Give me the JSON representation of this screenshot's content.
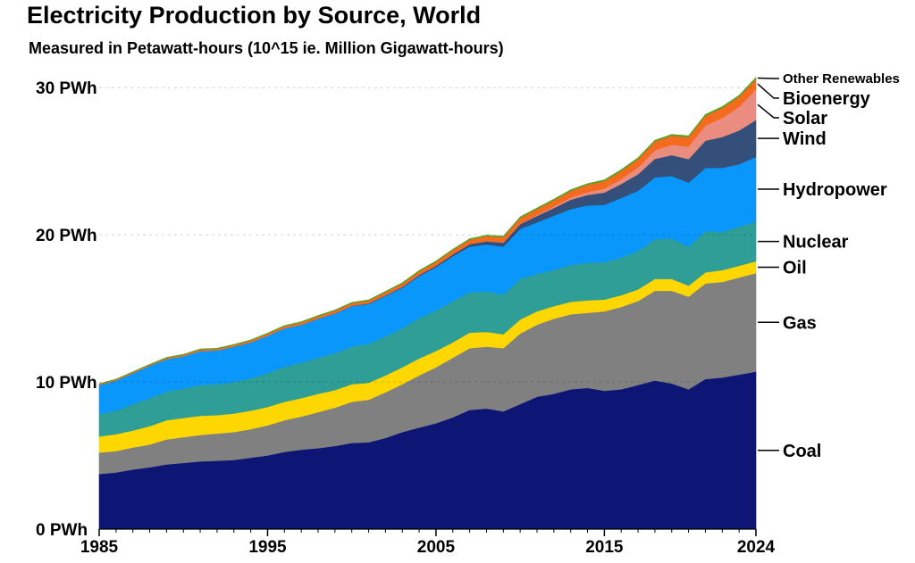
{
  "title": "Electricity Production by Source, World",
  "subtitle": "Measured in Petawatt-hours (10^15 ie. Million Gigawatt-hours)",
  "chart_data": {
    "type": "area",
    "stacked": true,
    "title": "Electricity Production by Source, World",
    "subtitle": "Measured in Petawatt-hours (10^15 ie. Million Gigawatt-hours)",
    "xlabel": "",
    "ylabel": "",
    "ylim": [
      0,
      30
    ],
    "xlim": [
      1985,
      2024
    ],
    "y_ticks": [
      {
        "value": 0,
        "label": "0 PWh"
      },
      {
        "value": 10,
        "label": "10 PWh"
      },
      {
        "value": 20,
        "label": "20 PWh"
      },
      {
        "value": 30,
        "label": "30 PWh"
      }
    ],
    "x_ticks": [
      {
        "value": 1985,
        "label": "1985"
      },
      {
        "value": 1995,
        "label": "1995"
      },
      {
        "value": 2005,
        "label": "2005"
      },
      {
        "value": 2015,
        "label": "2015"
      },
      {
        "value": 2024,
        "label": "2024"
      }
    ],
    "legend_position": "right, inline labels at series end",
    "x": [
      1985,
      1986,
      1987,
      1988,
      1989,
      1990,
      1991,
      1992,
      1993,
      1994,
      1995,
      1996,
      1997,
      1998,
      1999,
      2000,
      2001,
      2002,
      2003,
      2004,
      2005,
      2006,
      2007,
      2008,
      2009,
      2010,
      2011,
      2012,
      2013,
      2014,
      2015,
      2016,
      2017,
      2018,
      2019,
      2020,
      2021,
      2022,
      2023,
      2024
    ],
    "series": [
      {
        "name": "Coal",
        "color": "#0d1575",
        "values": [
          3.75,
          3.85,
          4.05,
          4.2,
          4.4,
          4.5,
          4.6,
          4.65,
          4.7,
          4.85,
          5.0,
          5.25,
          5.4,
          5.5,
          5.65,
          5.85,
          5.9,
          6.2,
          6.6,
          6.9,
          7.2,
          7.6,
          8.1,
          8.2,
          8.0,
          8.5,
          9.0,
          9.2,
          9.5,
          9.6,
          9.4,
          9.5,
          9.8,
          10.1,
          9.9,
          9.5,
          10.2,
          10.3,
          10.5,
          10.7
        ]
      },
      {
        "name": "Gas",
        "color": "#808080",
        "values": [
          1.45,
          1.45,
          1.5,
          1.55,
          1.7,
          1.75,
          1.8,
          1.85,
          1.9,
          1.95,
          2.05,
          2.15,
          2.25,
          2.45,
          2.6,
          2.8,
          2.9,
          3.1,
          3.25,
          3.55,
          3.8,
          4.05,
          4.2,
          4.2,
          4.3,
          4.8,
          4.9,
          5.1,
          5.1,
          5.1,
          5.4,
          5.6,
          5.7,
          6.1,
          6.3,
          6.3,
          6.5,
          6.5,
          6.6,
          6.7
        ]
      },
      {
        "name": "Oil",
        "color": "#ffd700",
        "values": [
          1.1,
          1.15,
          1.15,
          1.25,
          1.3,
          1.3,
          1.3,
          1.25,
          1.25,
          1.25,
          1.25,
          1.25,
          1.25,
          1.25,
          1.2,
          1.2,
          1.15,
          1.15,
          1.15,
          1.15,
          1.1,
          1.05,
          1.05,
          1.0,
          0.95,
          0.95,
          0.9,
          0.85,
          0.85,
          0.85,
          0.8,
          0.8,
          0.8,
          0.8,
          0.8,
          0.75,
          0.75,
          0.8,
          0.8,
          0.8
        ]
      },
      {
        "name": "Nuclear",
        "color": "#2e9e96",
        "values": [
          1.5,
          1.6,
          1.8,
          1.9,
          1.95,
          2.0,
          2.1,
          2.1,
          2.15,
          2.2,
          2.3,
          2.4,
          2.4,
          2.45,
          2.5,
          2.55,
          2.65,
          2.65,
          2.65,
          2.75,
          2.75,
          2.8,
          2.75,
          2.75,
          2.7,
          2.75,
          2.55,
          2.45,
          2.5,
          2.55,
          2.55,
          2.55,
          2.6,
          2.7,
          2.75,
          2.65,
          2.8,
          2.6,
          2.65,
          2.7
        ]
      },
      {
        "name": "Hydropower",
        "color": "#0a97fc",
        "values": [
          2.0,
          2.05,
          2.1,
          2.2,
          2.2,
          2.2,
          2.3,
          2.3,
          2.4,
          2.45,
          2.55,
          2.6,
          2.6,
          2.65,
          2.7,
          2.75,
          2.7,
          2.75,
          2.75,
          2.85,
          2.95,
          3.05,
          3.1,
          3.2,
          3.25,
          3.4,
          3.5,
          3.7,
          3.8,
          3.9,
          3.9,
          4.05,
          4.1,
          4.2,
          4.25,
          4.35,
          4.3,
          4.35,
          4.25,
          4.4
        ]
      },
      {
        "name": "Wind",
        "color": "#34507a",
        "values": [
          0,
          0,
          0,
          0,
          0,
          0,
          0,
          0,
          0,
          0,
          0,
          0,
          0,
          0.01,
          0.02,
          0.03,
          0.04,
          0.05,
          0.06,
          0.08,
          0.1,
          0.13,
          0.17,
          0.22,
          0.27,
          0.34,
          0.44,
          0.52,
          0.64,
          0.71,
          0.83,
          0.96,
          1.13,
          1.27,
          1.42,
          1.6,
          1.85,
          2.1,
          2.3,
          2.5
        ]
      },
      {
        "name": "Solar",
        "color": "#ea8d80",
        "values": [
          0,
          0,
          0,
          0,
          0,
          0,
          0,
          0,
          0,
          0,
          0,
          0,
          0,
          0,
          0,
          0,
          0,
          0,
          0,
          0,
          0,
          0,
          0,
          0.01,
          0.02,
          0.03,
          0.06,
          0.1,
          0.14,
          0.19,
          0.25,
          0.33,
          0.45,
          0.57,
          0.7,
          0.85,
          1.03,
          1.3,
          1.6,
          2.1
        ]
      },
      {
        "name": "Bioenergy",
        "color": "#f46a1e",
        "values": [
          0.06,
          0.06,
          0.06,
          0.07,
          0.08,
          0.09,
          0.1,
          0.1,
          0.11,
          0.12,
          0.13,
          0.14,
          0.15,
          0.16,
          0.17,
          0.18,
          0.19,
          0.2,
          0.22,
          0.24,
          0.26,
          0.28,
          0.3,
          0.33,
          0.35,
          0.38,
          0.4,
          0.43,
          0.45,
          0.5,
          0.52,
          0.55,
          0.57,
          0.6,
          0.62,
          0.64,
          0.66,
          0.67,
          0.69,
          0.7
        ]
      },
      {
        "name": "Other Renewables",
        "color": "#5aa224",
        "values": [
          0.03,
          0.03,
          0.03,
          0.03,
          0.04,
          0.04,
          0.04,
          0.04,
          0.04,
          0.04,
          0.04,
          0.04,
          0.05,
          0.05,
          0.05,
          0.05,
          0.05,
          0.06,
          0.06,
          0.06,
          0.06,
          0.06,
          0.07,
          0.07,
          0.07,
          0.07,
          0.08,
          0.08,
          0.08,
          0.08,
          0.09,
          0.09,
          0.09,
          0.09,
          0.09,
          0.09,
          0.1,
          0.1,
          0.1,
          0.1
        ]
      }
    ]
  }
}
